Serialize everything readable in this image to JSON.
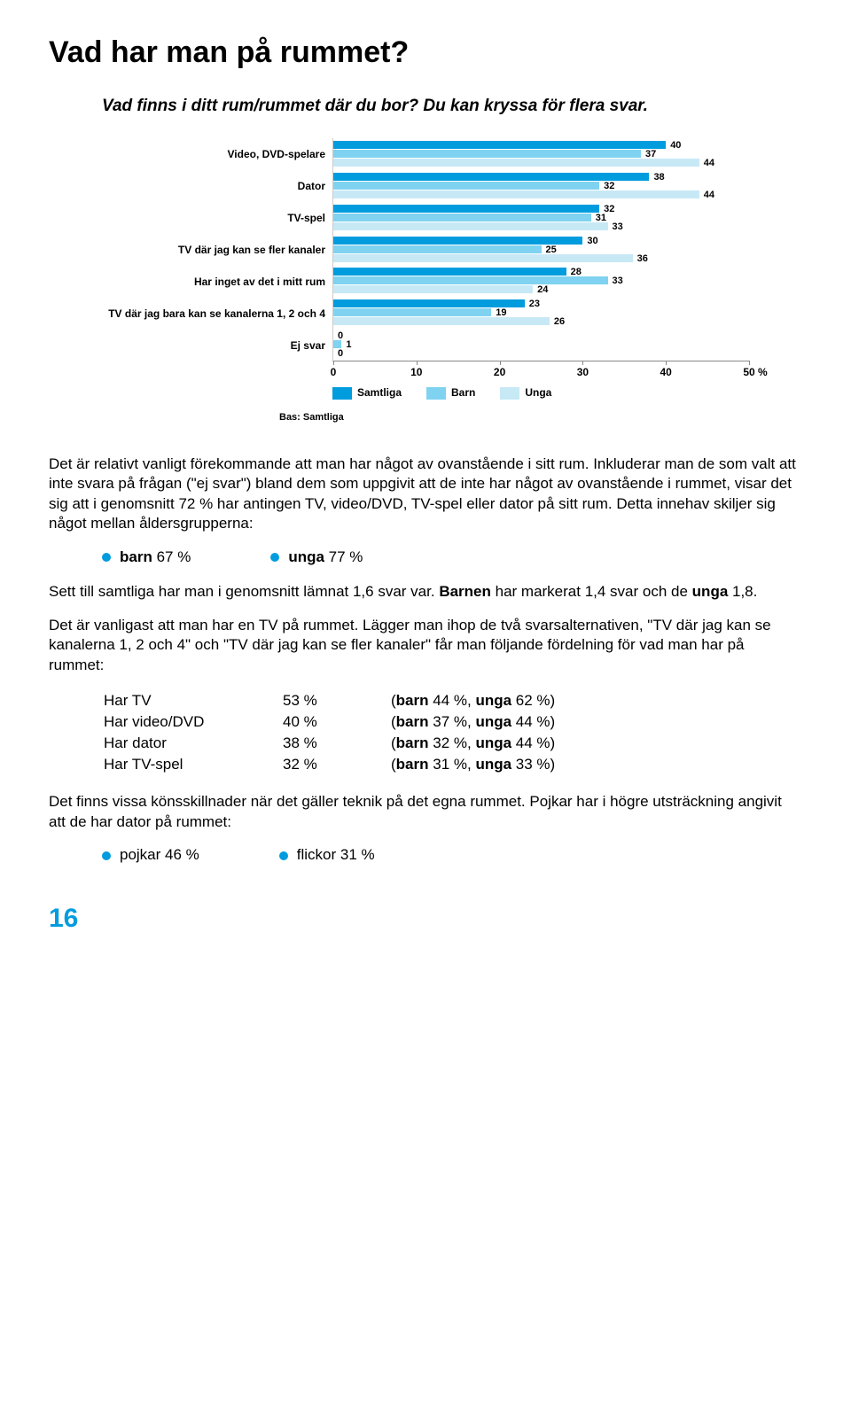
{
  "title": "Vad har man på rummet?",
  "sub_question": "Vad finns i ditt rum/rummet där du bor? Du kan kryssa för flera svar.",
  "chart": {
    "type": "bar",
    "max": 50,
    "tick_step": 10,
    "percent_label": "%",
    "colors": {
      "samtliga": "#009cde",
      "barn": "#7fd3f0",
      "unga": "#c7e9f6"
    },
    "categories": [
      {
        "label": "Video, DVD-spelare",
        "samtliga": 40,
        "barn": 37,
        "unga": 44
      },
      {
        "label": "Dator",
        "samtliga": 38,
        "barn": 32,
        "unga": 44
      },
      {
        "label": "TV-spel",
        "samtliga": 32,
        "barn": 31,
        "unga": 33
      },
      {
        "label": "TV där jag kan se fler kanaler",
        "samtliga": 30,
        "barn": 25,
        "unga": 36
      },
      {
        "label": "Har inget av det i mitt rum",
        "samtliga": 28,
        "barn": 33,
        "unga": 24
      },
      {
        "label": "TV där jag bara kan se kanalerna 1, 2 och 4",
        "samtliga": 23,
        "barn": 19,
        "unga": 26
      },
      {
        "label": "Ej svar",
        "samtliga": 0,
        "barn": 1,
        "unga": 0
      }
    ],
    "legend": {
      "s": "Samtliga",
      "b": "Barn",
      "u": "Unga"
    },
    "bas": "Bas: Samtliga"
  },
  "body": {
    "p1a": "Det är relativt vanligt förekommande att man har något av ovanstående i sitt rum. Inkluderar man de som valt att inte svara på frågan (\"ej svar\") bland dem som uppgivit att de inte har något av ovanstående i rummet, visar det sig att i genomsnitt 72 % har antingen TV, video/DVD, TV-spel eller dator på sitt rum. Detta innehav skiljer sig något mellan åldersgrupperna:",
    "bullet1a_label": "barn",
    "bullet1a_val": " 67 %",
    "bullet1b_label": "unga",
    "bullet1b_val": " 77 %",
    "p2": "Sett till samtliga har man i genomsnitt lämnat 1,6 svar var. <b>Barnen</b> har markerat 1,4 svar och de <b>unga</b> 1,8.",
    "p3": "Det är vanligast att man har en TV på rummet. Lägger man ihop de två svarsalternativen, \"TV där jag kan se kanalerna 1, 2 och 4\" och \"TV där jag kan se fler kanaler\" får man följande fördelning för vad man har på rummet:",
    "stats": [
      {
        "name": "Har TV",
        "pct": "53 %",
        "detail": "(<b>barn</b> 44 %, <b>unga</b> 62 %)"
      },
      {
        "name": "Har video/DVD",
        "pct": "40 %",
        "detail": "(<b>barn</b> 37 %, <b>unga</b> 44 %)"
      },
      {
        "name": "Har dator",
        "pct": "38 %",
        "detail": "(<b>barn</b> 32 %, <b>unga</b> 44 %)"
      },
      {
        "name": "Har TV-spel",
        "pct": "32 %",
        "detail": "(<b>barn</b> 31 %, <b>unga</b> 33 %)"
      }
    ],
    "p4": "Det finns vissa könsskillnader när det gäller teknik på det egna rummet. Pojkar har i högre utsträckning angivit att de har dator på rummet:",
    "bullet2a": "pojkar 46 %",
    "bullet2b": "flickor 31 %"
  },
  "pagenum": "16"
}
